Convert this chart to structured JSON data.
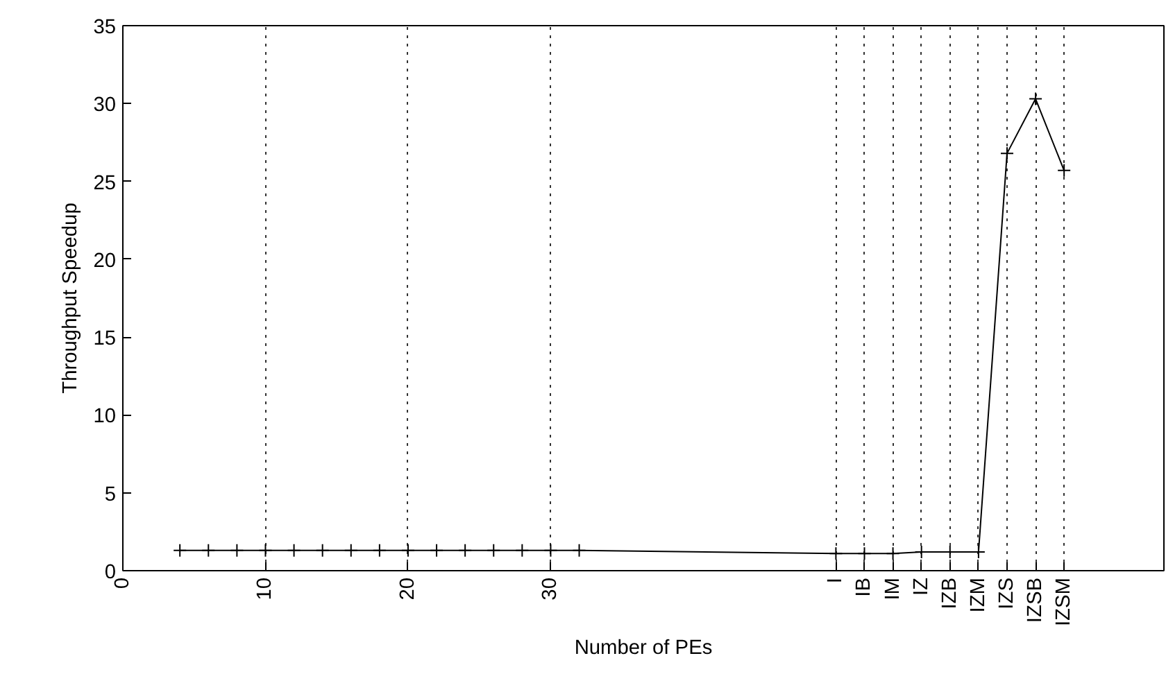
{
  "chart_data": {
    "type": "line",
    "xlabel": "Number of PEs",
    "ylabel": "Throughput Speedup",
    "x": [
      4,
      6,
      8,
      10,
      12,
      14,
      16,
      18,
      20,
      22,
      24,
      26,
      28,
      30,
      32,
      50,
      52,
      54,
      56,
      58,
      60,
      62,
      64,
      66
    ],
    "values": [
      1.3,
      1.3,
      1.3,
      1.3,
      1.3,
      1.3,
      1.3,
      1.3,
      1.3,
      1.3,
      1.3,
      1.3,
      1.3,
      1.3,
      1.3,
      1.1,
      1.1,
      1.1,
      1.2,
      1.2,
      1.2,
      26.8,
      30.3,
      25.7
    ],
    "color": "#000000",
    "marker": "cross",
    "line_style": "solid",
    "xlim": [
      0,
      73
    ],
    "ylim": [
      0,
      35
    ],
    "xticks": [
      0,
      10,
      20,
      30,
      {
        "value": 50,
        "label": "I"
      },
      {
        "value": 52,
        "label": "IB"
      },
      {
        "value": 54,
        "label": "IM"
      },
      {
        "value": 56,
        "label": "IZ"
      },
      {
        "value": 58,
        "label": "IZB"
      },
      {
        "value": 60,
        "label": "IZM"
      },
      {
        "value": 62,
        "label": "IZS"
      },
      {
        "value": 64,
        "label": "IZSB"
      },
      {
        "value": 66,
        "label": "IZSM"
      }
    ],
    "yticks": [
      0,
      5,
      10,
      15,
      20,
      25,
      30,
      35
    ],
    "grid": "x"
  }
}
